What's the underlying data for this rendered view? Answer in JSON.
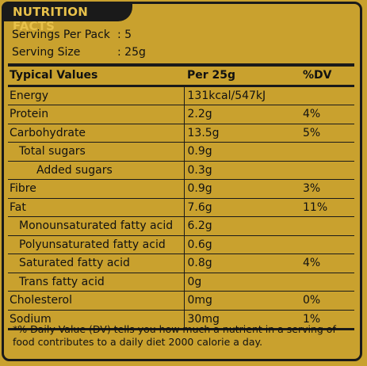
{
  "header": {
    "title": "NUTRITION FACTS"
  },
  "servings": {
    "per_pack_label": "Servings Per Pack",
    "per_pack_value": ":  5",
    "size_label": "Serving Size",
    "size_value": ":  25g"
  },
  "table": {
    "columns": [
      "Typical Values",
      "Per 25g",
      "%DV"
    ],
    "rows": [
      {
        "name": "Energy",
        "amount": "131kcal/547kJ",
        "dv": ""
      },
      {
        "name": "Protein",
        "amount": "2.2g",
        "dv": "4%"
      },
      {
        "name": "Carbohydrate",
        "amount": "13.5g",
        "dv": "5%"
      },
      {
        "name": "Total sugars",
        "amount": "0.9g",
        "dv": ""
      },
      {
        "name": "Added sugars",
        "amount": "0.3g",
        "dv": ""
      },
      {
        "name": "Fibre",
        "amount": "0.9g",
        "dv": "3%"
      },
      {
        "name": "Fat",
        "amount": "7.6g",
        "dv": "11%"
      },
      {
        "name": "Monounsaturated fatty acid",
        "amount": "6.2g",
        "dv": ""
      },
      {
        "name": "Polyunsaturated fatty acid",
        "amount": "0.6g",
        "dv": ""
      },
      {
        "name": "Saturated fatty acid",
        "amount": "0.8g",
        "dv": "4%"
      },
      {
        "name": "Trans fatty acid",
        "amount": "0g",
        "dv": ""
      },
      {
        "name": "Cholesterol",
        "amount": "0mg",
        "dv": "0%"
      },
      {
        "name": "Sodium",
        "amount": "30mg",
        "dv": "1%"
      }
    ]
  },
  "footnote": "*% Daily Value (DV) tells you how much a nutrient in a serving of food contributes to a daily diet 2000 calorie a day.",
  "colors": {
    "background": "#c9a12e",
    "ink": "#1a1a1a",
    "tab_text": "#e8c14a"
  }
}
